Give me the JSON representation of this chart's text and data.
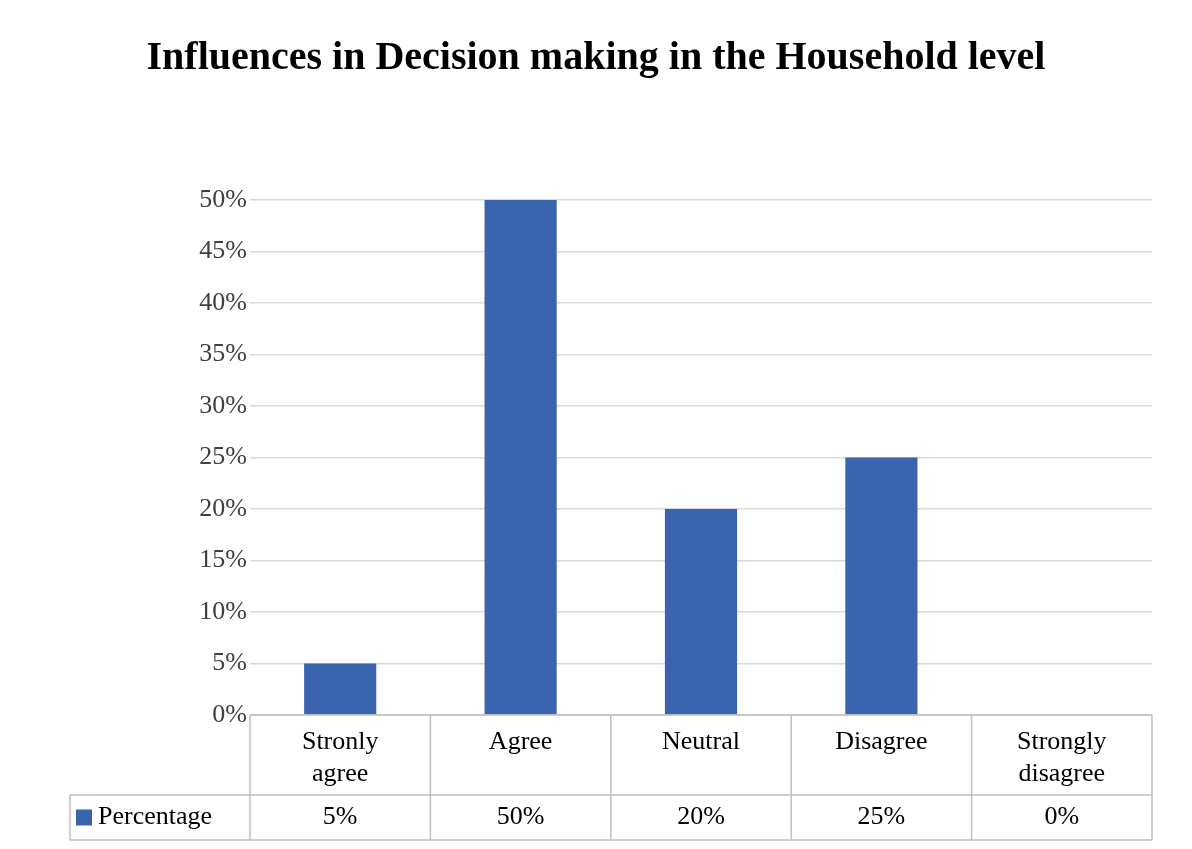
{
  "chart_data": {
    "type": "bar",
    "title": "Influences in Decision making in the Household level",
    "categories": [
      "Stronly agree",
      "Agree",
      "Neutral",
      "Disagree",
      "Strongly disagree"
    ],
    "series": [
      {
        "name": "Percentage",
        "color": "#3a64ae",
        "values": [
          5,
          50,
          20,
          25,
          0
        ],
        "value_labels": [
          "5%",
          "50%",
          "20%",
          "25%",
          "0%"
        ]
      }
    ],
    "ylim": [
      0,
      50
    ],
    "yticks": [
      {
        "value": 0,
        "label": "0%"
      },
      {
        "value": 5,
        "label": "5%"
      },
      {
        "value": 10,
        "label": "10%"
      },
      {
        "value": 15,
        "label": "15%"
      },
      {
        "value": 20,
        "label": "20%"
      },
      {
        "value": 25,
        "label": "25%"
      },
      {
        "value": 30,
        "label": "30%"
      },
      {
        "value": 35,
        "label": "35%"
      },
      {
        "value": 40,
        "label": "40%"
      },
      {
        "value": 45,
        "label": "45%"
      },
      {
        "value": 50,
        "label": "50%"
      }
    ],
    "grid": "y",
    "legend": "bottom left"
  }
}
